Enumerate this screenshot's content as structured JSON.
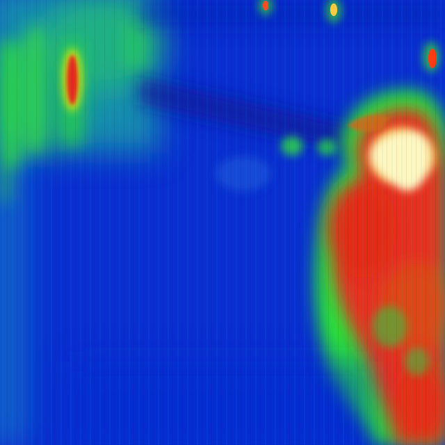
{
  "image": {
    "kind": "thermal-camera-frame",
    "palette": {
      "cold": "#0a2fd0",
      "cool": "#1f49e6",
      "mid": "#1fa0a0",
      "warm": "#22e01a",
      "hot": "#ff1a00",
      "hottest": "#fffad0"
    }
  }
}
